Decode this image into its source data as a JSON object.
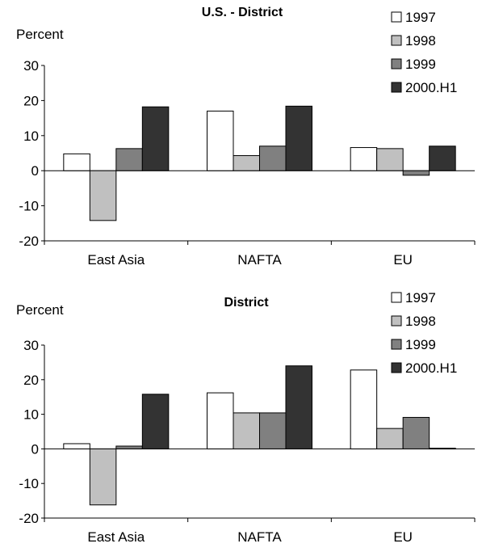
{
  "chart_data": [
    {
      "type": "bar",
      "title": "U.S. - District",
      "ylabel": "Percent",
      "xlabel": "",
      "categories": [
        "East Asia",
        "NAFTA",
        "EU"
      ],
      "yticks": [
        "30",
        "20",
        "10",
        "0",
        "-10",
        "-20"
      ],
      "ylim": [
        -20,
        30
      ],
      "legend_position": "top-right",
      "series": [
        {
          "name": "1997",
          "color": "#ffffff",
          "values": [
            4.8,
            17.0,
            6.6
          ]
        },
        {
          "name": "1998",
          "color": "#c0c0c0",
          "values": [
            -14.2,
            4.3,
            6.3
          ]
        },
        {
          "name": "1999",
          "color": "#808080",
          "values": [
            6.3,
            7.0,
            -1.3
          ]
        },
        {
          "name": "2000.H1",
          "color": "#333333",
          "values": [
            18.2,
            18.4,
            7.0
          ]
        }
      ]
    },
    {
      "type": "bar",
      "title": "District",
      "ylabel": "Percent",
      "xlabel": "",
      "categories": [
        "East Asia",
        "NAFTA",
        "EU"
      ],
      "yticks": [
        "30",
        "20",
        "10",
        "0",
        "-10",
        "-20"
      ],
      "ylim": [
        -20,
        30
      ],
      "legend_position": "top-right",
      "series": [
        {
          "name": "1997",
          "color": "#ffffff",
          "values": [
            1.5,
            16.2,
            22.8
          ]
        },
        {
          "name": "1998",
          "color": "#c0c0c0",
          "values": [
            -16.2,
            10.4,
            5.9
          ]
        },
        {
          "name": "1999",
          "color": "#808080",
          "values": [
            0.8,
            10.4,
            9.1
          ]
        },
        {
          "name": "2000.H1",
          "color": "#333333",
          "values": [
            15.8,
            24.0,
            0.2
          ]
        }
      ]
    }
  ]
}
